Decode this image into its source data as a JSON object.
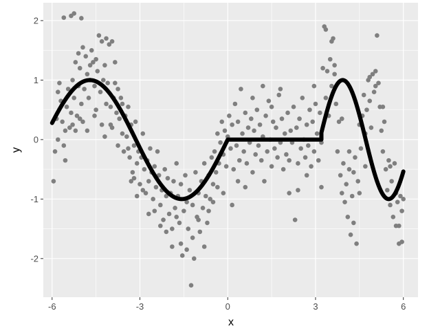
{
  "chart_data": {
    "type": "scatter",
    "xlabel": "x",
    "ylabel": "y",
    "xlim": [
      -6.3,
      6.5
    ],
    "ylim": [
      -2.65,
      2.3
    ],
    "x_ticks": [
      -6,
      -3,
      0,
      3,
      6
    ],
    "x_tick_labels": [
      "-6",
      "-3",
      "0",
      "3",
      "6"
    ],
    "y_ticks": [
      -2,
      -1,
      0,
      1,
      2
    ],
    "y_tick_labels": [
      "-2",
      "-1",
      "0",
      "1",
      "2"
    ],
    "grid": true,
    "background": "#ebebeb",
    "gridline_color": "#ffffff",
    "point_color": "#7f7f7f",
    "line_color": "#000000",
    "series": [
      {
        "type": "scatter",
        "points": [
          [
            -5.95,
            -0.7
          ],
          [
            -5.9,
            -0.2
          ],
          [
            -5.85,
            0.35
          ],
          [
            -5.8,
            0.8
          ],
          [
            -5.75,
            0.95
          ],
          [
            -5.7,
            0.65
          ],
          [
            -5.65,
            0.3
          ],
          [
            -5.6,
            -0.1
          ],
          [
            -5.55,
            -0.35
          ],
          [
            -5.5,
            0.55
          ],
          [
            -5.45,
            0.85
          ],
          [
            -5.4,
            0.2
          ],
          [
            -5.35,
            0.45
          ],
          [
            -5.3,
            1.0
          ],
          [
            -5.25,
            0.7
          ],
          [
            -5.2,
            0.15
          ],
          [
            -5.15,
            0.4
          ],
          [
            -5.1,
            0.9
          ],
          [
            -5.05,
            1.2
          ],
          [
            -5.0,
            0.6
          ],
          [
            -4.95,
            0.3
          ],
          [
            -4.9,
            0.85
          ],
          [
            -4.85,
            1.4
          ],
          [
            -4.8,
            1.1
          ],
          [
            -4.75,
            0.7
          ],
          [
            -4.7,
            1.0
          ],
          [
            -4.65,
            1.5
          ],
          [
            -4.6,
            1.3
          ],
          [
            -4.55,
            0.9
          ],
          [
            -4.5,
            0.5
          ],
          [
            -4.45,
            1.15
          ],
          [
            -4.4,
            1.75
          ],
          [
            -4.35,
            0.8
          ],
          [
            -4.3,
            0.25
          ],
          [
            -4.25,
            1.0
          ],
          [
            -4.2,
            1.25
          ],
          [
            -4.15,
            0.6
          ],
          [
            -4.1,
            0.95
          ],
          [
            -4.05,
            1.6
          ],
          [
            -4.0,
            0.55
          ],
          [
            -3.95,
            0.2
          ],
          [
            -3.9,
            0.7
          ],
          [
            -3.85,
            1.3
          ],
          [
            -3.8,
            0.45
          ],
          [
            -3.75,
            -0.1
          ],
          [
            -3.7,
            0.35
          ],
          [
            -3.65,
            0.7
          ],
          [
            -3.6,
            0.1
          ],
          [
            -3.55,
            -0.2
          ],
          [
            -3.5,
            0.4
          ],
          [
            -3.45,
            0.05
          ],
          [
            -3.4,
            0.55
          ],
          [
            -3.35,
            -0.3
          ],
          [
            -3.3,
            0.25
          ],
          [
            -3.25,
            -0.55
          ],
          [
            -3.2,
            -0.1
          ],
          [
            -3.15,
            0.3
          ],
          [
            -3.1,
            -0.4
          ],
          [
            -3.05,
            -0.2
          ],
          [
            -3.0,
            -0.75
          ],
          [
            -2.95,
            -0.3
          ],
          [
            -2.9,
            0.1
          ],
          [
            -2.85,
            -0.5
          ],
          [
            -2.8,
            -0.9
          ],
          [
            -2.75,
            -0.35
          ],
          [
            -2.7,
            -0.7
          ],
          [
            -2.65,
            -0.15
          ],
          [
            -2.6,
            -0.55
          ],
          [
            -2.55,
            -1.0
          ],
          [
            -2.5,
            -0.45
          ],
          [
            -2.45,
            -0.8
          ],
          [
            -2.4,
            -0.2
          ],
          [
            -2.35,
            -0.6
          ],
          [
            -2.3,
            -1.1
          ],
          [
            -2.25,
            -0.85
          ],
          [
            -2.2,
            -1.35
          ],
          [
            -2.15,
            -0.5
          ],
          [
            -2.1,
            -0.95
          ],
          [
            -2.05,
            -0.65
          ],
          [
            -2.0,
            -1.25
          ],
          [
            -1.95,
            -0.9
          ],
          [
            -1.9,
            -1.5
          ],
          [
            -1.85,
            -0.7
          ],
          [
            -1.8,
            -1.15
          ],
          [
            -1.75,
            -0.4
          ],
          [
            -1.7,
            -0.95
          ],
          [
            -1.65,
            -1.4
          ],
          [
            -1.6,
            -0.75
          ],
          [
            -1.55,
            -1.95
          ],
          [
            -1.5,
            -1.2
          ],
          [
            -1.45,
            -0.6
          ],
          [
            -1.4,
            -1.05
          ],
          [
            -1.35,
            -1.5
          ],
          [
            -1.3,
            -0.85
          ],
          [
            -1.25,
            -2.45
          ],
          [
            -1.2,
            -1.1
          ],
          [
            -1.15,
            -2.0
          ],
          [
            -1.1,
            -0.55
          ],
          [
            -1.05,
            -1.3
          ],
          [
            -1.0,
            -0.9
          ],
          [
            -0.95,
            -1.55
          ],
          [
            -0.9,
            -0.7
          ],
          [
            -0.85,
            -1.15
          ],
          [
            -0.8,
            -0.4
          ],
          [
            -0.75,
            -0.95
          ],
          [
            -0.7,
            -1.4
          ],
          [
            -0.65,
            -0.6
          ],
          [
            -0.6,
            -1.0
          ],
          [
            -0.55,
            -0.3
          ],
          [
            -0.5,
            -0.75
          ],
          [
            -0.45,
            -0.2
          ],
          [
            -0.4,
            -0.55
          ],
          [
            -0.35,
            0.1
          ],
          [
            -0.3,
            -0.4
          ],
          [
            -0.25,
            -0.05
          ],
          [
            -0.2,
            0.3
          ],
          [
            -0.15,
            -0.25
          ],
          [
            -0.1,
            0.15
          ],
          [
            -0.05,
            -0.45
          ],
          [
            0.0,
            0.05
          ],
          [
            0.05,
            0.4
          ],
          [
            0.1,
            -0.15
          ],
          [
            0.15,
            0.25
          ],
          [
            0.2,
            -0.5
          ],
          [
            0.25,
            0.6
          ],
          [
            0.3,
            -0.1
          ],
          [
            0.35,
            0.3
          ],
          [
            0.4,
            -0.35
          ],
          [
            0.45,
            0.85
          ],
          [
            0.5,
            0.1
          ],
          [
            0.55,
            -0.2
          ],
          [
            0.6,
            0.45
          ],
          [
            0.65,
            -0.4
          ],
          [
            0.7,
            0.2
          ],
          [
            0.75,
            -0.05
          ],
          [
            0.8,
            0.35
          ],
          [
            0.85,
            -0.55
          ],
          [
            0.9,
            0.15
          ],
          [
            0.95,
            -0.25
          ],
          [
            1.0,
            0.5
          ],
          [
            1.05,
            -0.1
          ],
          [
            1.1,
            0.25
          ],
          [
            1.15,
            -0.35
          ],
          [
            1.2,
            0.05
          ],
          [
            1.25,
            -0.7
          ],
          [
            1.3,
            0.4
          ],
          [
            1.35,
            -0.2
          ],
          [
            1.4,
            0.65
          ],
          [
            1.45,
            0.0
          ],
          [
            1.5,
            -0.45
          ],
          [
            1.55,
            0.3
          ],
          [
            1.6,
            -0.15
          ],
          [
            1.65,
            0.2
          ],
          [
            1.7,
            -0.3
          ],
          [
            1.75,
            0.75
          ],
          [
            1.8,
            -0.05
          ],
          [
            1.85,
            0.35
          ],
          [
            1.9,
            -0.5
          ],
          [
            1.95,
            0.1
          ],
          [
            2.0,
            -0.25
          ],
          [
            2.05,
            0.45
          ],
          [
            2.1,
            -0.35
          ],
          [
            2.15,
            0.15
          ],
          [
            2.2,
            -0.05
          ],
          [
            2.25,
            0.55
          ],
          [
            2.3,
            -1.35
          ],
          [
            2.35,
            0.2
          ],
          [
            2.4,
            -0.4
          ],
          [
            2.45,
            0.35
          ],
          [
            2.5,
            -0.15
          ],
          [
            2.55,
            0.7
          ],
          [
            2.6,
            0.0
          ],
          [
            2.65,
            -0.3
          ],
          [
            2.7,
            0.25
          ],
          [
            2.75,
            -0.1
          ],
          [
            2.8,
            0.5
          ],
          [
            2.85,
            -0.45
          ],
          [
            2.9,
            0.3
          ],
          [
            2.95,
            -0.2
          ],
          [
            3.0,
            0.6
          ],
          [
            3.05,
            0.1
          ],
          [
            3.1,
            -0.35
          ],
          [
            3.15,
            0.45
          ],
          [
            3.2,
            -0.05
          ],
          [
            3.25,
            1.2
          ],
          [
            3.3,
            1.9
          ],
          [
            3.35,
            0.7
          ],
          [
            3.4,
            1.15
          ],
          [
            3.45,
            0.4
          ],
          [
            3.5,
            1.35
          ],
          [
            3.55,
            0.9
          ],
          [
            3.6,
            1.7
          ],
          [
            3.65,
            1.1
          ],
          [
            3.7,
            0.6
          ],
          [
            3.75,
            -0.2
          ],
          [
            3.8,
            0.3
          ],
          [
            3.85,
            -0.6
          ],
          [
            3.9,
            -0.9
          ],
          [
            3.95,
            -0.4
          ],
          [
            4.0,
            -1.05
          ],
          [
            4.05,
            -0.75
          ],
          [
            4.1,
            -1.3
          ],
          [
            4.15,
            -0.5
          ],
          [
            4.2,
            -1.6
          ],
          [
            4.25,
            -0.95
          ],
          [
            4.3,
            -1.4
          ],
          [
            4.35,
            -0.3
          ],
          [
            4.4,
            -1.75
          ],
          [
            4.45,
            -0.7
          ],
          [
            4.5,
            0.25
          ],
          [
            4.55,
            -0.15
          ],
          [
            4.6,
            0.4
          ],
          [
            4.65,
            0.75
          ],
          [
            4.7,
            0.1
          ],
          [
            4.75,
            0.5
          ],
          [
            4.8,
            1.0
          ],
          [
            4.85,
            0.65
          ],
          [
            4.9,
            0.2
          ],
          [
            4.95,
            1.1
          ],
          [
            5.0,
            0.8
          ],
          [
            5.05,
            1.15
          ],
          [
            5.1,
            1.75
          ],
          [
            5.15,
            0.95
          ],
          [
            5.2,
            0.55
          ],
          [
            5.25,
            0.15
          ],
          [
            5.3,
            -0.2
          ],
          [
            5.35,
            0.3
          ],
          [
            5.4,
            -0.5
          ],
          [
            5.45,
            -0.85
          ],
          [
            5.5,
            -0.35
          ],
          [
            5.55,
            -1.1
          ],
          [
            5.6,
            -0.7
          ],
          [
            5.65,
            -1.3
          ],
          [
            5.7,
            -0.4
          ],
          [
            5.75,
            -1.45
          ],
          [
            5.8,
            -1.05
          ],
          [
            5.85,
            -1.75
          ],
          [
            5.9,
            -0.95
          ],
          [
            5.95,
            -1.2
          ],
          [
            6.0,
            -1.0
          ],
          [
            -5.6,
            2.05
          ],
          [
            -5.35,
            2.08
          ],
          [
            -5.25,
            2.12
          ],
          [
            -5.0,
            2.04
          ],
          [
            -4.95,
            1.55
          ],
          [
            -5.2,
            1.3
          ],
          [
            -5.1,
            1.45
          ],
          [
            -4.7,
            1.25
          ],
          [
            -4.5,
            1.35
          ],
          [
            -4.3,
            1.65
          ],
          [
            -4.15,
            1.7
          ],
          [
            -3.95,
            1.65
          ],
          [
            -3.85,
            0.95
          ],
          [
            -3.75,
            0.85
          ],
          [
            -3.6,
            0.6
          ],
          [
            -3.4,
            -0.15
          ],
          [
            -3.3,
            -0.7
          ],
          [
            -3.2,
            -0.65
          ],
          [
            -3.1,
            -0.95
          ],
          [
            -2.9,
            -0.85
          ],
          [
            -2.7,
            -1.25
          ],
          [
            -2.5,
            -1.2
          ],
          [
            -2.3,
            -1.45
          ],
          [
            -2.1,
            -1.55
          ],
          [
            -1.9,
            -1.8
          ],
          [
            -1.75,
            -1.3
          ],
          [
            -1.6,
            -1.75
          ],
          [
            -1.4,
            -1.85
          ],
          [
            -1.2,
            -1.65
          ],
          [
            -1.0,
            -1.35
          ],
          [
            -0.8,
            -1.8
          ],
          [
            -0.65,
            -1.2
          ],
          [
            -0.5,
            -1.05
          ],
          [
            -0.35,
            -0.8
          ],
          [
            -0.15,
            -0.9
          ],
          [
            0.15,
            -1.1
          ],
          [
            0.35,
            -0.7
          ],
          [
            0.6,
            -0.8
          ],
          [
            0.85,
            0.7
          ],
          [
            1.2,
            0.9
          ],
          [
            1.5,
            0.55
          ],
          [
            1.8,
            0.85
          ],
          [
            2.1,
            -0.9
          ],
          [
            2.4,
            -0.85
          ],
          [
            2.7,
            -0.6
          ],
          [
            2.95,
            0.9
          ],
          [
            3.2,
            -0.8
          ],
          [
            3.35,
            1.85
          ],
          [
            3.55,
            1.65
          ],
          [
            3.65,
            1.25
          ],
          [
            3.9,
            0.35
          ],
          [
            4.15,
            -0.2
          ],
          [
            4.3,
            -0.55
          ],
          [
            4.5,
            -0.9
          ],
          [
            4.7,
            -0.45
          ],
          [
            4.85,
            1.05
          ],
          [
            5.05,
            0.9
          ],
          [
            5.3,
            0.55
          ],
          [
            5.55,
            -0.45
          ],
          [
            5.75,
            -0.9
          ],
          [
            5.85,
            -1.45
          ],
          [
            5.95,
            -1.72
          ],
          [
            -5.8,
            0.0
          ],
          [
            -5.55,
            0.15
          ],
          [
            -5.3,
            0.25
          ],
          [
            -5.05,
            0.35
          ],
          [
            -4.8,
            0.15
          ],
          [
            -4.55,
            0.4
          ],
          [
            -4.2,
            0.05
          ],
          [
            -4.0,
            0.25
          ]
        ]
      },
      {
        "type": "line",
        "segments": [
          {
            "x_from": -6,
            "x_to": 0,
            "formula": "sin(x)"
          },
          {
            "x_from": 0,
            "x_to": 3.2,
            "formula": "0"
          },
          {
            "x_from": 3.2,
            "x_to": 6,
            "formula": "sin(2x)"
          }
        ]
      }
    ]
  }
}
